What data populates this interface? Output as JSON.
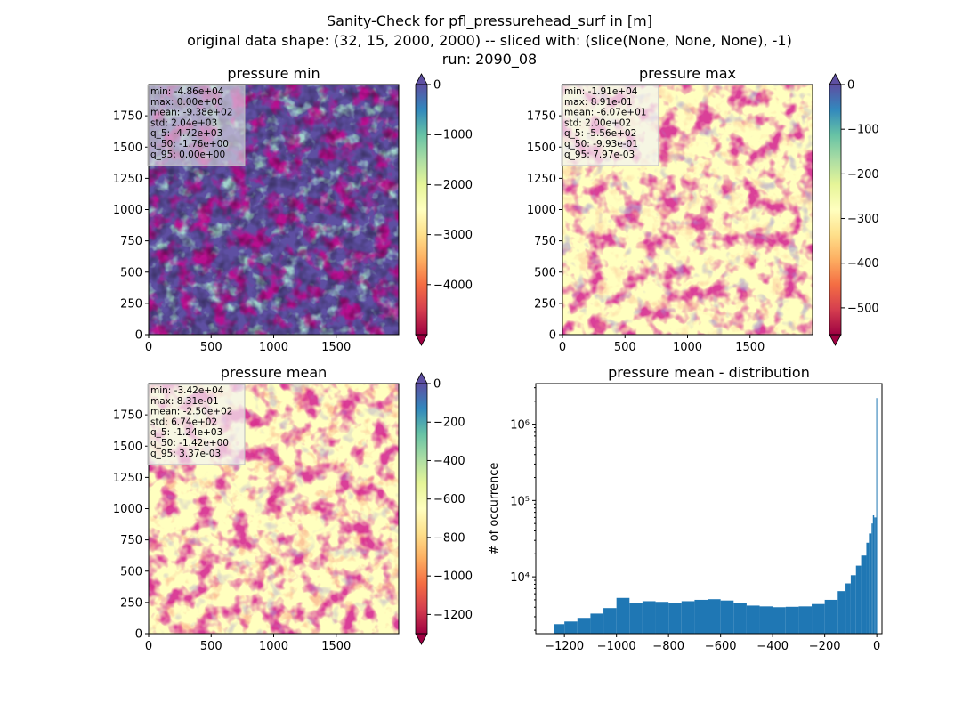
{
  "suptitle": {
    "line1": "Sanity-Check for pfl_pressurehead_surf in [m]",
    "line2": "original data shape: (32, 15, 2000, 2000) -- sliced with: (slice(None, None, None), -1)",
    "line3": "run: 2090_08"
  },
  "colors": {
    "spectral": [
      "#9e0142",
      "#d53e4f",
      "#f46d43",
      "#fdae61",
      "#fee08b",
      "#ffffbf",
      "#e6f598",
      "#abdda4",
      "#66c2a5",
      "#3288bd",
      "#5e4fa2"
    ],
    "hist_bar": "#1f77b4"
  },
  "chart_data": [
    {
      "type": "heatmap",
      "id": "min",
      "title": "pressure min",
      "xlim": [
        0,
        2000
      ],
      "ylim": [
        0,
        2000
      ],
      "xticks": [
        "0",
        "500",
        "1000",
        "1500"
      ],
      "yticks": [
        "0",
        "250",
        "500",
        "750",
        "1000",
        "1250",
        "1500",
        "1750"
      ],
      "colorbar": {
        "vmin": -5000,
        "vmax": 0,
        "ticks": [
          0,
          -1000,
          -2000,
          -3000,
          -4000
        ],
        "tick_labels": [
          "0",
          "−1000",
          "−2000",
          "−3000",
          "−4000"
        ],
        "extend": "both",
        "lower_color": "#9e0142",
        "upper_color": "#5e4fa2"
      },
      "stats": [
        "min: -4.86e+04",
        "max: 0.00e+00",
        "mean: -9.38e+02",
        "std: 2.04e+03",
        "q_5: -4.72e+03",
        "q_50: -1.76e+00",
        "q_95: 0.00e+00"
      ]
    },
    {
      "type": "heatmap",
      "id": "max",
      "title": "pressure max",
      "xlim": [
        0,
        2000
      ],
      "ylim": [
        0,
        2000
      ],
      "xticks": [
        "0",
        "500",
        "1000",
        "1500"
      ],
      "yticks": [
        "0",
        "250",
        "500",
        "750",
        "1000",
        "1250",
        "1500",
        "1750"
      ],
      "colorbar": {
        "vmin": -560,
        "vmax": 0,
        "ticks": [
          0,
          -100,
          -200,
          -300,
          -400,
          -500
        ],
        "tick_labels": [
          "0",
          "−100",
          "−200",
          "−300",
          "−400",
          "−500"
        ],
        "extend": "both",
        "lower_color": "#9e0142",
        "upper_color": "#5e4fa2"
      },
      "stats": [
        "min: -1.91e+04",
        "max: 8.91e-01",
        "mean: -6.07e+01",
        "std: 2.00e+02",
        "q_5: -5.56e+02",
        "q_50: -9.93e-01",
        "q_95: 7.97e-03"
      ]
    },
    {
      "type": "heatmap",
      "id": "mean",
      "title": "pressure mean",
      "xlim": [
        0,
        2000
      ],
      "ylim": [
        0,
        2000
      ],
      "xticks": [
        "0",
        "500",
        "1000",
        "1500"
      ],
      "yticks": [
        "0",
        "250",
        "500",
        "750",
        "1000",
        "1250",
        "1500",
        "1750"
      ],
      "colorbar": {
        "vmin": -1300,
        "vmax": 0,
        "ticks": [
          0,
          -200,
          -400,
          -600,
          -800,
          -1000,
          -1200
        ],
        "tick_labels": [
          "0",
          "−200",
          "−400",
          "−600",
          "−800",
          "−1000",
          "−1200"
        ],
        "extend": "both",
        "lower_color": "#9e0142",
        "upper_color": "#5e4fa2"
      },
      "stats": [
        "min: -3.42e+04",
        "max: 8.31e-01",
        "mean: -2.50e+02",
        "std: 6.74e+02",
        "q_5: -1.24e+03",
        "q_50: -1.42e+00",
        "q_95: 3.37e-03"
      ]
    },
    {
      "type": "bar",
      "id": "hist",
      "title": "pressure mean - distribution",
      "ylabel": "# of occurrence",
      "yscale": "log",
      "xlim": [
        -1310,
        20
      ],
      "ylim": [
        1800,
        3400000
      ],
      "xticks": [
        -1200,
        -1000,
        -800,
        -600,
        -400,
        -200,
        0
      ],
      "xtick_labels": [
        "−1200",
        "−1000",
        "−800",
        "−600",
        "−400",
        "−200",
        "0"
      ],
      "yticks": [
        10000,
        100000,
        1000000
      ],
      "ytick_labels": [
        "10⁴",
        "10⁵",
        "10⁶"
      ],
      "bins": {
        "x": [
          -1240,
          -1200,
          -1150,
          -1100,
          -1050,
          -1000,
          -950,
          -900,
          -850,
          -800,
          -750,
          -700,
          -650,
          -600,
          -550,
          -500,
          -450,
          -400,
          -350,
          -300,
          -250,
          -200,
          -150,
          -120,
          -100,
          -80,
          -60,
          -40,
          -30,
          -20,
          -15,
          -10,
          -5,
          -2
        ],
        "values": [
          2400,
          2600,
          2900,
          3300,
          3900,
          5300,
          4600,
          4800,
          4700,
          4500,
          4800,
          5000,
          5100,
          4900,
          4500,
          4200,
          4100,
          4000,
          4050,
          4100,
          4400,
          5000,
          6500,
          8200,
          10500,
          14000,
          19000,
          28000,
          37000,
          50000,
          64000,
          60000,
          60000,
          2200000
        ]
      }
    }
  ]
}
